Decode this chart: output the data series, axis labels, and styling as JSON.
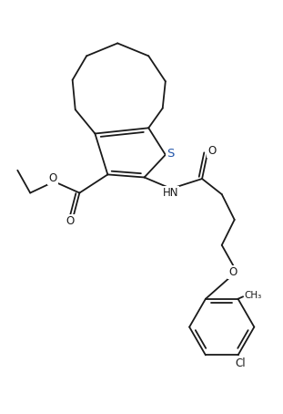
{
  "figure_width": 3.11,
  "figure_height": 4.54,
  "dpi": 100,
  "bg_color": "#ffffff",
  "line_color": "#1a1a1a",
  "line_width": 1.3,
  "label_color_main": "#1a1a1a",
  "label_color_S": "#2255aa",
  "font_size": 8.5,
  "xlim": [
    0,
    10
  ],
  "ylim": [
    0,
    14.5
  ]
}
